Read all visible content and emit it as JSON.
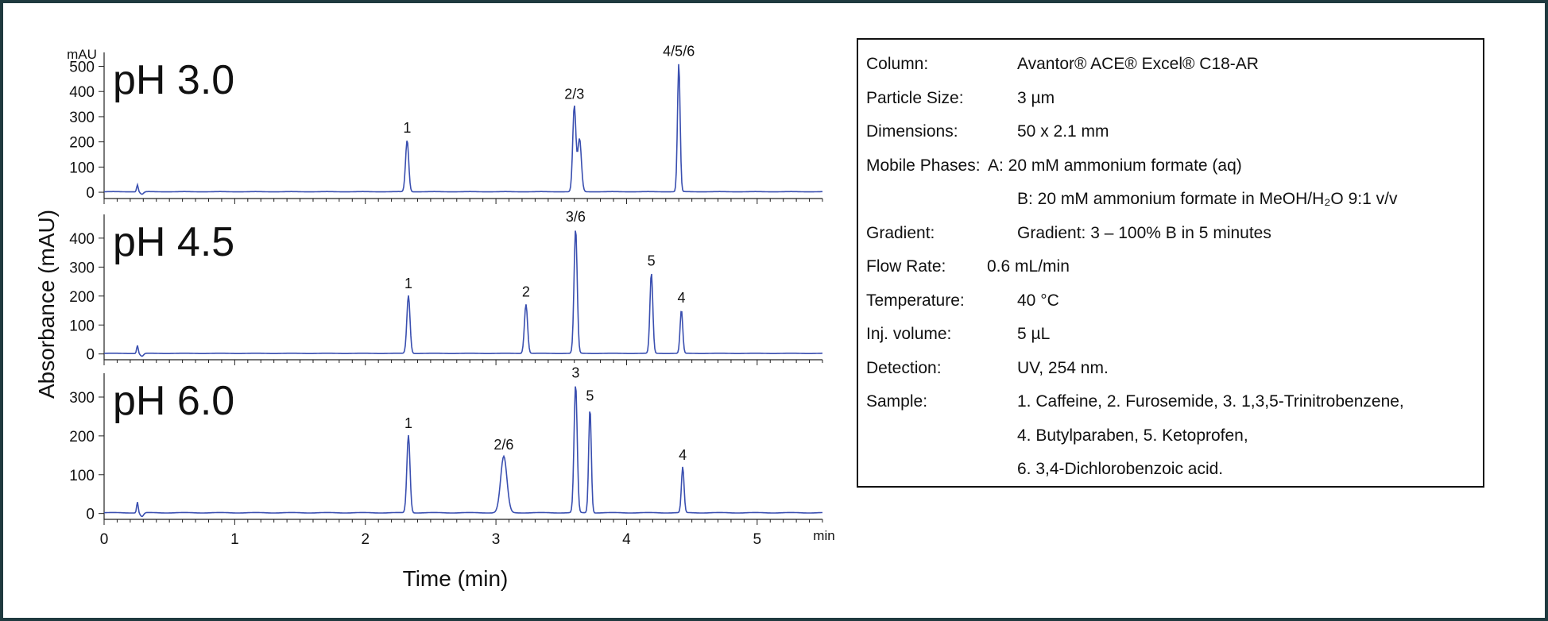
{
  "chart_data": {
    "type": "line",
    "ylabel": "Absorbance (mAU)",
    "y_unit": "mAU",
    "xlabel": "Time (min)",
    "x_unit": "min",
    "xlim": [
      0,
      5.5
    ],
    "x_ticks": [
      "0",
      "1",
      "2",
      "3",
      "4",
      "5"
    ],
    "panels": [
      {
        "label": "pH 3.0",
        "ylim": [
          -25,
          530
        ],
        "y_ticks": [
          "0",
          "100",
          "200",
          "300",
          "400",
          "500"
        ],
        "peaks": [
          {
            "label": "1",
            "time": 2.32,
            "height": 205,
            "width": 0.012
          },
          {
            "label": "2/3",
            "time": 3.6,
            "height": 340,
            "width": 0.012
          },
          {
            "label": "",
            "time": 3.64,
            "height": 210,
            "width": 0.014
          },
          {
            "label": "4/5/6",
            "time": 4.4,
            "height": 510,
            "width": 0.01
          }
        ]
      },
      {
        "label": "pH 4.5",
        "ylim": [
          -20,
          460
        ],
        "y_ticks": [
          "0",
          "100",
          "200",
          "300",
          "400"
        ],
        "peaks": [
          {
            "label": "1",
            "time": 2.33,
            "height": 200,
            "width": 0.012
          },
          {
            "label": "2",
            "time": 3.23,
            "height": 170,
            "width": 0.012
          },
          {
            "label": "3/6",
            "time": 3.61,
            "height": 430,
            "width": 0.012
          },
          {
            "label": "5",
            "time": 4.19,
            "height": 278,
            "width": 0.011
          },
          {
            "label": "4",
            "time": 4.42,
            "height": 150,
            "width": 0.01
          }
        ]
      },
      {
        "label": "pH 6.0",
        "ylim": [
          -15,
          345
        ],
        "y_ticks": [
          "0",
          "100",
          "200",
          "300"
        ],
        "peaks": [
          {
            "label": "1",
            "time": 2.33,
            "height": 200,
            "width": 0.012
          },
          {
            "label": "2/6",
            "time": 3.06,
            "height": 145,
            "width": 0.024
          },
          {
            "label": "3",
            "time": 3.61,
            "height": 330,
            "width": 0.012
          },
          {
            "label": "5",
            "time": 3.72,
            "height": 270,
            "width": 0.01
          },
          {
            "label": "4",
            "time": 4.43,
            "height": 118,
            "width": 0.01
          }
        ]
      }
    ]
  },
  "conditions": [
    {
      "label": "Column:",
      "value": "Avantor® ACE® Excel® C18-AR"
    },
    {
      "label": "Particle Size:",
      "value": "3 µm"
    },
    {
      "label": "Dimensions:",
      "value": "50 x 2.1 mm"
    },
    {
      "label": "Mobile Phases:",
      "value": "A: 20 mM ammonium formate (aq)"
    },
    {
      "label": "",
      "value": "B: 20 mM ammonium formate in MeOH/H₂O 9:1 v/v"
    },
    {
      "label": "Gradient:",
      "value": "Gradient: 3 – 100% B in 5 minutes"
    },
    {
      "label": "Flow Rate:",
      "value": "0.6 mL/min"
    },
    {
      "label": "Temperature:",
      "value": "40 °C"
    },
    {
      "label": "Inj. volume:",
      "value": "5 µL"
    },
    {
      "label": "Detection:",
      "value": "UV, 254 nm."
    },
    {
      "label": "Sample:",
      "value": "1. Caffeine, 2. Furosemide, 3. 1,3,5-Trinitrobenzene,"
    },
    {
      "label": "",
      "value": "4. Butylparaben, 5. Ketoprofen,"
    },
    {
      "label": "",
      "value": "6. 3,4-Dichlorobenzoic acid."
    }
  ],
  "colors": {
    "trace": "#3a4fb0",
    "frame": "#1f3a3f"
  }
}
